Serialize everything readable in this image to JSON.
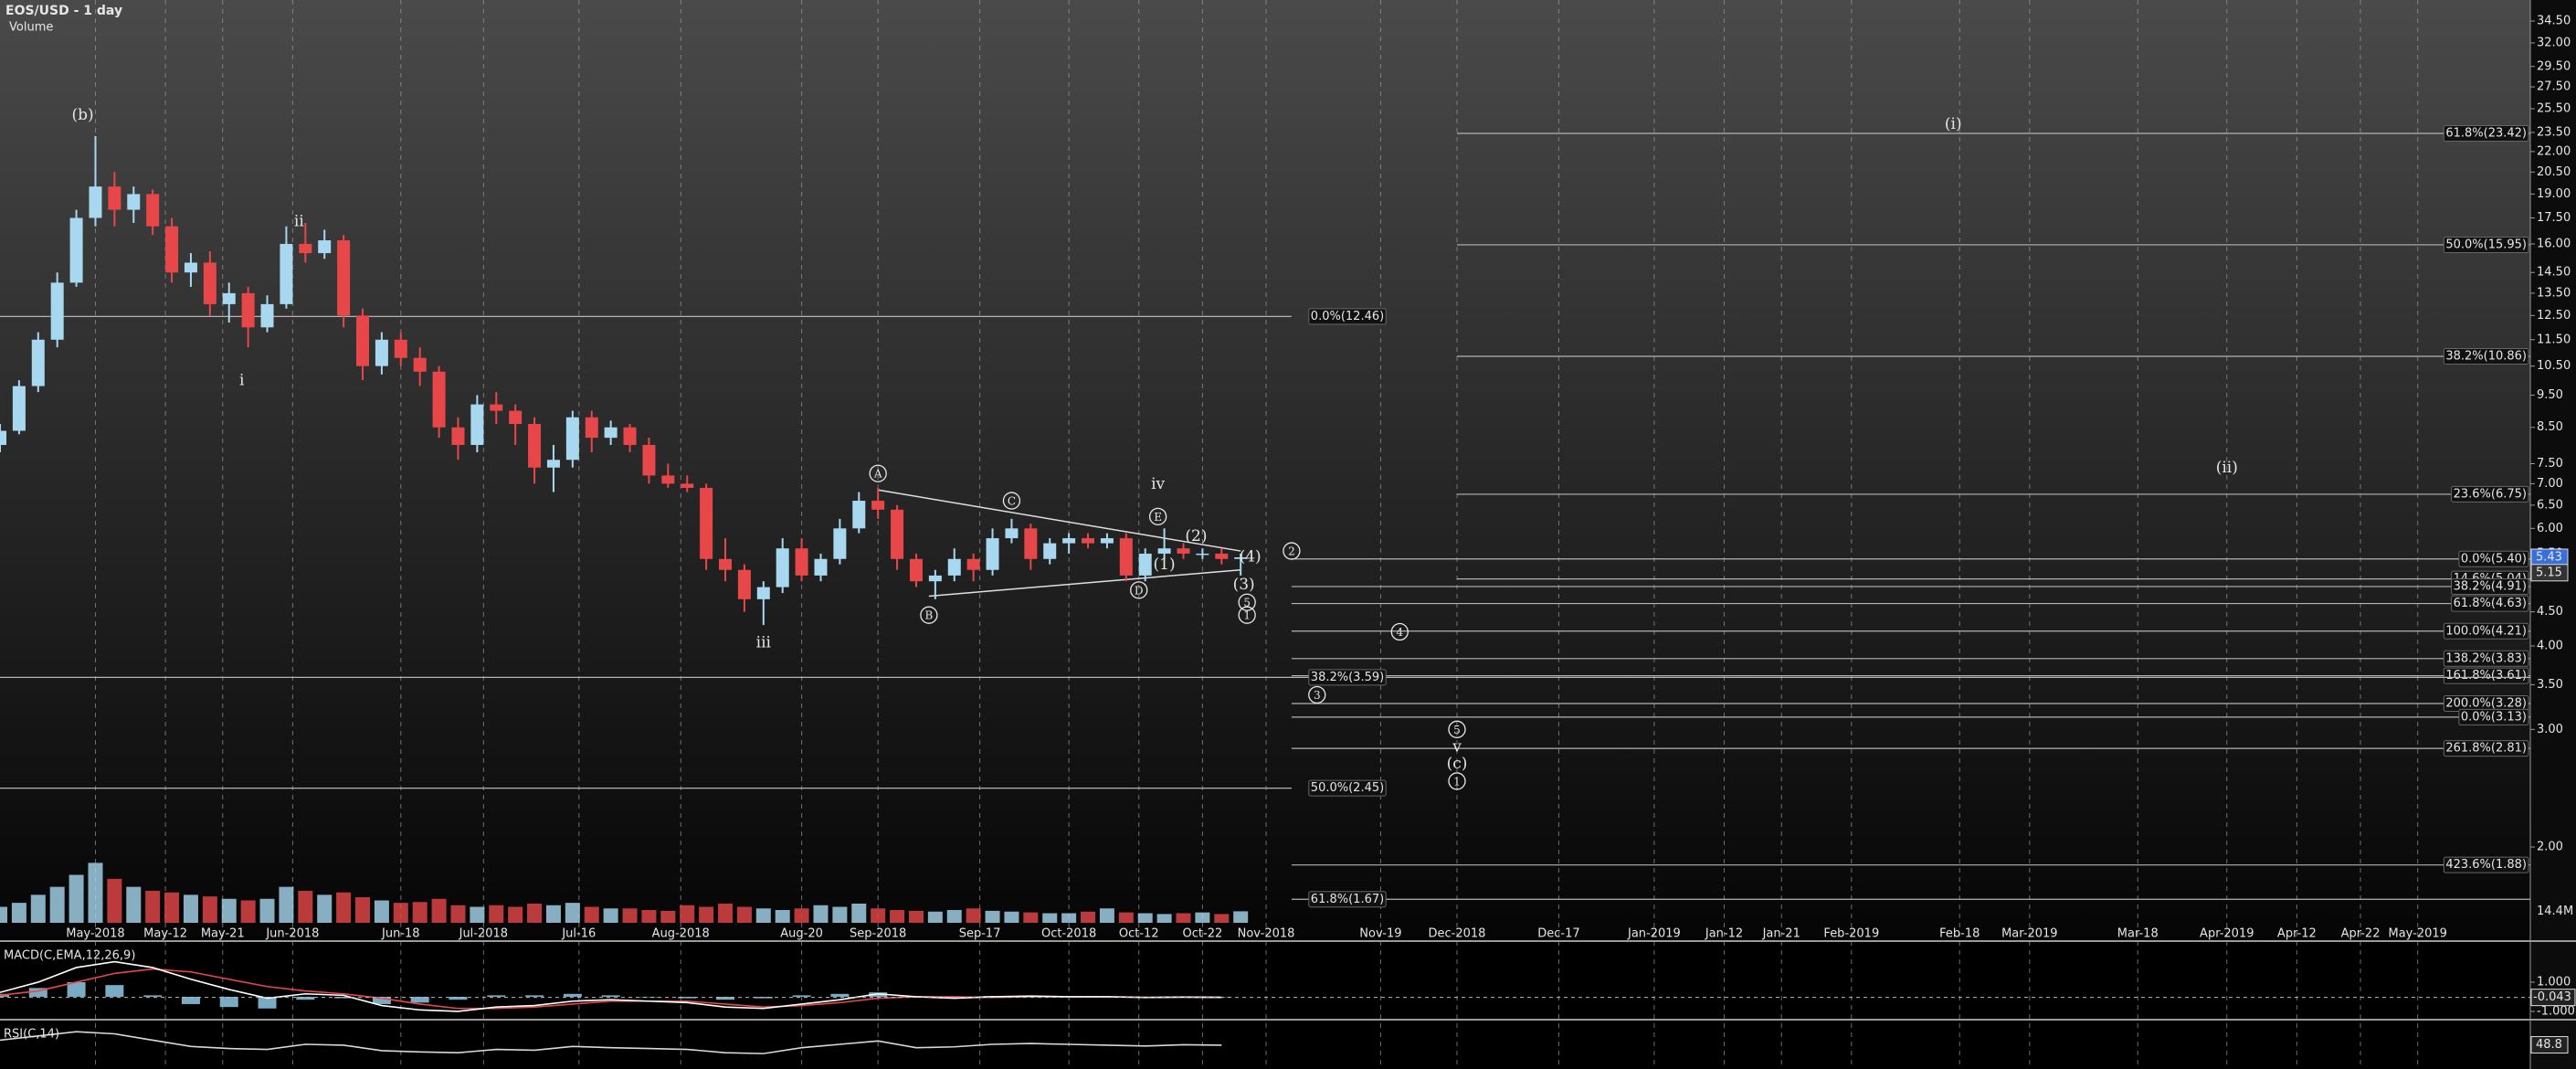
{
  "chart_data": {
    "type": "candlestick",
    "title": "EOS/USD - 1 day",
    "volume_title": "Volume",
    "log_scale": true,
    "grid": true,
    "colors": {
      "up": "#a8d8f0",
      "down": "#e8474a",
      "fib": "#b4b4b4",
      "macd": "#ffffff",
      "signal": "#e8474a",
      "histogram": "#8ec9e6",
      "rsi": "#d8d8d8",
      "volume_label": "#e8842a"
    },
    "xlim": [
      -15,
      382.7
    ],
    "ylim": [
      1.54,
      37.1
    ],
    "xticks": [
      {
        "value": 0,
        "label": "May-2018"
      },
      {
        "value": 11,
        "label": "May-12"
      },
      {
        "value": 20,
        "label": "May-21"
      },
      {
        "value": 31,
        "label": "Jun-2018"
      },
      {
        "value": 48,
        "label": "Jun-18"
      },
      {
        "value": 61,
        "label": "Jul-2018"
      },
      {
        "value": 76,
        "label": "Jul-16"
      },
      {
        "value": 92,
        "label": "Aug-2018"
      },
      {
        "value": 111,
        "label": "Aug-20"
      },
      {
        "value": 123,
        "label": "Sep-2018"
      },
      {
        "value": 139,
        "label": "Sep-17"
      },
      {
        "value": 153,
        "label": "Oct-2018"
      },
      {
        "value": 164,
        "label": "Oct-12"
      },
      {
        "value": 174,
        "label": "Oct-22"
      },
      {
        "value": 184,
        "label": "Nov-2018"
      },
      {
        "value": 202,
        "label": "Nov-19"
      },
      {
        "value": 214,
        "label": "Dec-2018"
      },
      {
        "value": 230,
        "label": "Dec-17"
      },
      {
        "value": 245,
        "label": "Jan-2019"
      },
      {
        "value": 256,
        "label": "Jan-12"
      },
      {
        "value": 265,
        "label": "Jan-21"
      },
      {
        "value": 276,
        "label": "Feb-2019"
      },
      {
        "value": 293,
        "label": "Feb-18"
      },
      {
        "value": 304,
        "label": "Mar-2019"
      },
      {
        "value": 321,
        "label": "Mar-18"
      },
      {
        "value": 335,
        "label": "Apr-2019"
      },
      {
        "value": 346,
        "label": "Apr-12"
      },
      {
        "value": 356,
        "label": "Apr-22"
      },
      {
        "value": 365,
        "label": "May-2019"
      }
    ],
    "yticks": [
      {
        "value": 34.5,
        "label": "34.50"
      },
      {
        "value": 32,
        "label": "32.00"
      },
      {
        "value": 29.5,
        "label": "29.50"
      },
      {
        "value": 27.5,
        "label": "27.50"
      },
      {
        "value": 25.5,
        "label": "25.50"
      },
      {
        "value": 23.5,
        "label": "23.50"
      },
      {
        "value": 22,
        "label": "22.00"
      },
      {
        "value": 20.5,
        "label": "20.50"
      },
      {
        "value": 19,
        "label": "19.00"
      },
      {
        "value": 17.5,
        "label": "17.50"
      },
      {
        "value": 16,
        "label": "16.00"
      },
      {
        "value": 14.5,
        "label": "14.50"
      },
      {
        "value": 13.5,
        "label": "13.50"
      },
      {
        "value": 12.5,
        "label": "12.50"
      },
      {
        "value": 11.5,
        "label": "11.50"
      },
      {
        "value": 10.5,
        "label": "10.50"
      },
      {
        "value": 9.5,
        "label": "9.50"
      },
      {
        "value": 8.5,
        "label": "8.50"
      },
      {
        "value": 7.5,
        "label": "7.50"
      },
      {
        "value": 7,
        "label": "7.00"
      },
      {
        "value": 6.5,
        "label": "6.50"
      },
      {
        "value": 6,
        "label": "6.00"
      },
      {
        "value": 5.5,
        "label": "5.50"
      },
      {
        "value": 4.5,
        "label": "4.50"
      },
      {
        "value": 4,
        "label": "4.00"
      },
      {
        "value": 3.5,
        "label": "3.50"
      },
      {
        "value": 3,
        "label": "3.00"
      },
      {
        "value": 2,
        "label": "2.00"
      }
    ],
    "price_markers": [
      {
        "value": 5.43,
        "label": "5.43",
        "color": "#3a6fd8"
      },
      {
        "value": 5.15,
        "label": "5.15",
        "color": "#333333"
      }
    ],
    "x": [
      -15,
      -12,
      -9,
      -6,
      -3,
      0,
      3,
      6,
      9,
      12,
      15,
      18,
      21,
      24,
      27,
      30,
      33,
      36,
      39,
      42,
      45,
      48,
      51,
      54,
      57,
      60,
      63,
      66,
      69,
      72,
      75,
      78,
      81,
      84,
      87,
      90,
      93,
      96,
      99,
      102,
      105,
      108,
      111,
      114,
      117,
      120,
      123,
      126,
      129,
      132,
      135,
      138,
      141,
      144,
      147,
      150,
      153,
      156,
      159,
      162,
      165,
      168,
      171,
      174,
      177,
      180
    ],
    "candles": [
      [
        8.0,
        8.6,
        7.8,
        8.4
      ],
      [
        8.4,
        10.0,
        8.3,
        9.8
      ],
      [
        9.8,
        11.8,
        9.6,
        11.5
      ],
      [
        11.5,
        14.5,
        11.2,
        14.0
      ],
      [
        14.0,
        18.0,
        13.8,
        17.5
      ],
      [
        17.5,
        23.2,
        17.0,
        19.5
      ],
      [
        19.5,
        20.5,
        17.0,
        18.0
      ],
      [
        18.0,
        19.5,
        17.2,
        19.0
      ],
      [
        19.0,
        19.3,
        16.5,
        17.0
      ],
      [
        17.0,
        17.5,
        14.0,
        14.5
      ],
      [
        14.5,
        15.5,
        13.8,
        15.0
      ],
      [
        15.0,
        15.6,
        12.5,
        13.0
      ],
      [
        13.0,
        14.0,
        12.2,
        13.5
      ],
      [
        13.5,
        13.8,
        11.2,
        12.0
      ],
      [
        12.0,
        13.4,
        11.8,
        13.0
      ],
      [
        13.0,
        17.0,
        12.8,
        16.0
      ],
      [
        16.0,
        17.2,
        15.0,
        15.5
      ],
      [
        15.5,
        16.8,
        15.2,
        16.2
      ],
      [
        16.2,
        16.5,
        12.0,
        12.5
      ],
      [
        12.5,
        12.8,
        10.0,
        10.5
      ],
      [
        10.5,
        11.8,
        10.2,
        11.5
      ],
      [
        11.5,
        11.8,
        10.5,
        10.8
      ],
      [
        10.8,
        11.2,
        9.8,
        10.3
      ],
      [
        10.3,
        10.5,
        8.2,
        8.5
      ],
      [
        8.5,
        8.8,
        7.6,
        8.0
      ],
      [
        8.0,
        9.5,
        7.8,
        9.2
      ],
      [
        9.2,
        9.6,
        8.6,
        9.0
      ],
      [
        9.0,
        9.2,
        8.0,
        8.6
      ],
      [
        8.6,
        8.8,
        7.0,
        7.4
      ],
      [
        7.4,
        8.0,
        6.8,
        7.6
      ],
      [
        7.6,
        9.0,
        7.4,
        8.8
      ],
      [
        8.8,
        9.0,
        7.8,
        8.2
      ],
      [
        8.2,
        8.7,
        8.0,
        8.5
      ],
      [
        8.5,
        8.6,
        7.8,
        8.0
      ],
      [
        8.0,
        8.2,
        7.0,
        7.2
      ],
      [
        7.2,
        7.5,
        6.9,
        7.0
      ],
      [
        7.0,
        7.2,
        6.8,
        6.9
      ],
      [
        6.9,
        7.0,
        5.2,
        5.4
      ],
      [
        5.4,
        5.8,
        5.0,
        5.2
      ],
      [
        5.2,
        5.3,
        4.5,
        4.7
      ],
      [
        4.7,
        5.0,
        4.3,
        4.9
      ],
      [
        4.9,
        5.8,
        4.8,
        5.6
      ],
      [
        5.6,
        5.8,
        5.0,
        5.1
      ],
      [
        5.1,
        5.5,
        5.0,
        5.4
      ],
      [
        5.4,
        6.2,
        5.3,
        6.0
      ],
      [
        6.0,
        6.8,
        5.9,
        6.6
      ],
      [
        6.6,
        6.9,
        6.2,
        6.4
      ],
      [
        6.4,
        6.5,
        5.2,
        5.4
      ],
      [
        5.4,
        5.5,
        4.9,
        5.0
      ],
      [
        5.0,
        5.2,
        4.7,
        5.1
      ],
      [
        5.1,
        5.6,
        5.0,
        5.4
      ],
      [
        5.4,
        5.5,
        5.0,
        5.2
      ],
      [
        5.2,
        6.0,
        5.1,
        5.8
      ],
      [
        5.8,
        6.2,
        5.7,
        6.0
      ],
      [
        6.0,
        6.1,
        5.2,
        5.4
      ],
      [
        5.4,
        5.8,
        5.3,
        5.7
      ],
      [
        5.7,
        5.9,
        5.5,
        5.8
      ],
      [
        5.8,
        5.9,
        5.6,
        5.7
      ],
      [
        5.7,
        5.9,
        5.6,
        5.8
      ],
      [
        5.8,
        5.9,
        5.0,
        5.1
      ],
      [
        5.1,
        5.6,
        5.0,
        5.5
      ],
      [
        5.5,
        6.0,
        5.4,
        5.6
      ],
      [
        5.6,
        5.7,
        5.4,
        5.5
      ],
      [
        5.5,
        5.6,
        5.4,
        5.5
      ],
      [
        5.5,
        5.6,
        5.3,
        5.4
      ],
      [
        5.4,
        5.5,
        5.1,
        5.43
      ]
    ],
    "volume": [
      20,
      25,
      35,
      45,
      60,
      75,
      55,
      45,
      40,
      38,
      35,
      33,
      30,
      28,
      30,
      45,
      40,
      35,
      38,
      32,
      28,
      25,
      26,
      30,
      22,
      20,
      22,
      20,
      24,
      22,
      25,
      20,
      18,
      18,
      16,
      15,
      22,
      20,
      24,
      20,
      18,
      16,
      18,
      22,
      20,
      24,
      18,
      16,
      15,
      14,
      16,
      18,
      15,
      14,
      13,
      12,
      12,
      14,
      18,
      13,
      12,
      11,
      12,
      13,
      11,
      14.4
    ],
    "volume_ylim": [
      0,
      80
    ],
    "volume_tick": {
      "value": 14.4,
      "label": "14.4M"
    },
    "trendlines": [
      {
        "x": [
          123,
          180
        ],
        "y": [
          6.85,
          5.55
        ]
      },
      {
        "x": [
          131,
          180
        ],
        "y": [
          4.75,
          5.2
        ]
      }
    ],
    "fib_levels": [
      {
        "price": 23.42,
        "label": "61.8%(23.42)",
        "start": 214,
        "end": 382.7,
        "label_side": "right"
      },
      {
        "price": 15.95,
        "label": "50.0%(15.95)",
        "start": 214,
        "end": 382.7,
        "label_side": "right"
      },
      {
        "price": 10.86,
        "label": "38.2%(10.86)",
        "start": 214,
        "end": 382.7,
        "label_side": "right"
      },
      {
        "price": 6.75,
        "label": "23.6%(6.75)",
        "start": 214,
        "end": 382.7,
        "label_side": "right"
      },
      {
        "price": 5.4,
        "label": "0.0%(5.40)",
        "start": 188,
        "end": 382.7,
        "label_side": "right"
      },
      {
        "price": 5.04,
        "label": "14.6%(5.04)",
        "start": 214,
        "end": 382.7,
        "label_side": "right"
      },
      {
        "price": 4.91,
        "label": "38.2%(4.91)",
        "start": 188,
        "end": 382.7,
        "label_side": "right"
      },
      {
        "price": 4.63,
        "label": "61.8%(4.63)",
        "start": 188,
        "end": 382.7,
        "label_side": "right"
      },
      {
        "price": 4.21,
        "label": "100.0%(4.21)",
        "start": 188,
        "end": 382.7,
        "label_side": "right"
      },
      {
        "price": 3.83,
        "label": "138.2%(3.83)",
        "start": 188,
        "end": 382.7,
        "label_side": "right"
      },
      {
        "price": 3.61,
        "label": "161.8%(3.61)",
        "start": 188,
        "end": 382.7,
        "label_side": "right"
      },
      {
        "price": 3.28,
        "label": "200.0%(3.28)",
        "start": 188,
        "end": 382.7,
        "label_side": "right"
      },
      {
        "price": 3.13,
        "label": "0.0%(3.13)",
        "start": 188,
        "end": 382.7,
        "label_side": "right"
      },
      {
        "price": 2.81,
        "label": "261.8%(2.81)",
        "start": 188,
        "end": 382.7,
        "label_side": "right"
      },
      {
        "price": 1.88,
        "label": "423.6%(1.88)",
        "start": 188,
        "end": 382.7,
        "label_side": "right"
      },
      {
        "price": 12.46,
        "label": "0.0%(12.46)",
        "start": -15,
        "end": 188,
        "label_side": "left"
      },
      {
        "price": 3.59,
        "label": "38.2%(3.59)",
        "start": -15,
        "end": 382.7,
        "label_side": "left"
      },
      {
        "price": 2.45,
        "label": "50.0%(2.45)",
        "start": -15,
        "end": 188,
        "label_side": "left"
      },
      {
        "price": 1.67,
        "label": "61.8%(1.67)",
        "start": 188,
        "end": 382.7,
        "label_side": "left"
      }
    ],
    "fib_label_x": 191,
    "wave_labels": [
      {
        "text": "(b)",
        "x": -2,
        "y": 25.0,
        "circled": false
      },
      {
        "text": "ii",
        "x": 32,
        "y": 17.3,
        "circled": false
      },
      {
        "text": "i",
        "x": 23,
        "y": 10.0,
        "circled": false
      },
      {
        "text": "iii",
        "x": 105,
        "y": 4.05,
        "circled": false
      },
      {
        "text": "A",
        "x": 123,
        "y": 7.25,
        "circled": true
      },
      {
        "text": "B",
        "x": 131,
        "y": 4.45,
        "circled": true
      },
      {
        "text": "C",
        "x": 144,
        "y": 6.6,
        "circled": true
      },
      {
        "text": "D",
        "x": 164,
        "y": 4.85,
        "circled": true
      },
      {
        "text": "iv",
        "x": 167,
        "y": 7.0,
        "circled": false
      },
      {
        "text": "E",
        "x": 167,
        "y": 6.25,
        "circled": true
      },
      {
        "text": "(2)",
        "x": 173,
        "y": 5.85,
        "circled": false
      },
      {
        "text": "(1)",
        "x": 168,
        "y": 5.3,
        "circled": false
      },
      {
        "text": "(4)",
        "x": 181.5,
        "y": 5.45,
        "circled": false
      },
      {
        "text": "(3)",
        "x": 180.5,
        "y": 4.95,
        "circled": false
      },
      {
        "text": "5",
        "x": 181,
        "y": 4.65,
        "circled": true
      },
      {
        "text": "1",
        "x": 181,
        "y": 4.45,
        "circled": true
      },
      {
        "text": "2",
        "x": 188,
        "y": 5.55,
        "circled": true
      },
      {
        "text": "4",
        "x": 205,
        "y": 4.2,
        "circled": true
      },
      {
        "text": "3",
        "x": 192,
        "y": 3.38,
        "circled": true
      },
      {
        "text": "5",
        "x": 214,
        "y": 3.0,
        "circled": true
      },
      {
        "text": "v",
        "x": 214,
        "y": 2.83,
        "circled": false
      },
      {
        "text": "(c)",
        "x": 214,
        "y": 2.67,
        "circled": false
      },
      {
        "text": "1",
        "x": 214,
        "y": 2.51,
        "circled": true
      },
      {
        "text": "(i)",
        "x": 292,
        "y": 24.2,
        "circled": false
      },
      {
        "text": "(ii)",
        "x": 335,
        "y": 7.4,
        "circled": false
      }
    ],
    "indicator_x": [
      -15,
      -9,
      -3,
      3,
      9,
      15,
      21,
      27,
      33,
      39,
      45,
      51,
      57,
      63,
      69,
      75,
      81,
      87,
      93,
      99,
      105,
      111,
      117,
      123,
      129,
      135,
      141,
      147,
      153,
      159,
      165,
      171,
      177
    ],
    "macd": {
      "title": "MACD(C,EMA,12,26,9)",
      "ylim": [
        -1.44,
        3.56
      ],
      "yticks": [
        {
          "value": 1,
          "label": "1.000"
        },
        {
          "value": -1,
          "label": "-1.000"
        }
      ],
      "last": {
        "value": -0.043,
        "label": "-0.043"
      },
      "macd": [
        0.3,
        1.0,
        2.0,
        2.4,
        2.0,
        1.2,
        0.5,
        -0.1,
        0.2,
        0.1,
        -0.6,
        -0.9,
        -1.0,
        -0.7,
        -0.6,
        -0.3,
        -0.2,
        -0.3,
        -0.4,
        -0.7,
        -0.8,
        -0.5,
        -0.2,
        0.2,
        0.0,
        -0.1,
        0.0,
        0.05,
        0.0,
        0.0,
        -0.05,
        -0.02,
        -0.04
      ],
      "signal": [
        0.1,
        0.4,
        1.0,
        1.6,
        1.9,
        1.7,
        1.2,
        0.7,
        0.4,
        0.2,
        -0.1,
        -0.5,
        -0.8,
        -0.8,
        -0.7,
        -0.5,
        -0.3,
        -0.3,
        -0.3,
        -0.5,
        -0.7,
        -0.6,
        -0.4,
        -0.1,
        0.0,
        0.0,
        -0.05,
        0.0,
        0.0,
        0.0,
        -0.03,
        -0.03,
        -0.04
      ],
      "histogram": [
        0.2,
        0.6,
        1.0,
        0.8,
        0.1,
        -0.5,
        -0.7,
        -0.8,
        -0.2,
        -0.1,
        -0.5,
        -0.4,
        -0.2,
        0.1,
        0.1,
        0.2,
        0.1,
        0.0,
        -0.1,
        -0.2,
        -0.1,
        0.1,
        0.2,
        0.3,
        0.0,
        -0.1,
        0.05,
        0.05,
        0.0,
        0.0,
        -0.02,
        0.01,
        0.0
      ]
    },
    "rsi": {
      "title": "RSI(C,14)",
      "ylim": [
        0,
        100
      ],
      "last": {
        "value": 48.8,
        "label": "48.8"
      },
      "values": [
        60,
        70,
        80,
        75,
        60,
        45,
        40,
        38,
        50,
        48,
        35,
        32,
        30,
        38,
        36,
        45,
        42,
        40,
        38,
        30,
        28,
        42,
        50,
        58,
        42,
        44,
        50,
        52,
        50,
        48,
        46,
        49,
        48
      ]
    }
  }
}
